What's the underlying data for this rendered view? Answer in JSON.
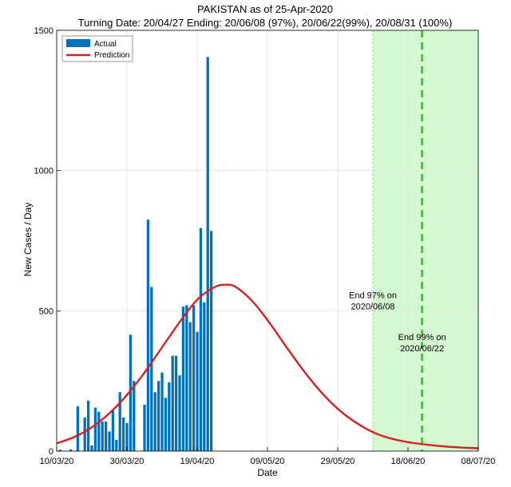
{
  "chart_data": {
    "type": "bar",
    "title": "PAKISTAN as of 25-Apr-2020",
    "subtitle": "Turning Date: 20/04/27  Ending: 20/06/08 (97%), 20/06/22(99%), 20/08/31 (100%)",
    "xlabel": "Date",
    "ylabel": "New Cases / Day",
    "ylim": [
      0,
      1500
    ],
    "xlim": [
      "2020-03-10",
      "2020-07-08"
    ],
    "x_tick_labels": [
      "10/03/20",
      "30/03/20",
      "19/04/20",
      "09/05/20",
      "29/05/20",
      "18/06/20",
      "08/07/20"
    ],
    "x_tick_dates": [
      "2020-03-10",
      "2020-03-30",
      "2020-04-19",
      "2020-05-09",
      "2020-05-29",
      "2020-06-18",
      "2020-07-08"
    ],
    "y_ticks": [
      0,
      500,
      1000,
      1500
    ],
    "grid": true,
    "legend_position": "top-left",
    "series": [
      {
        "name": "Actual",
        "kind": "bar",
        "color": "#0072BD",
        "dates": [
          "2020-03-11",
          "2020-03-12",
          "2020-03-13",
          "2020-03-14",
          "2020-03-15",
          "2020-03-16",
          "2020-03-17",
          "2020-03-18",
          "2020-03-19",
          "2020-03-20",
          "2020-03-21",
          "2020-03-22",
          "2020-03-23",
          "2020-03-24",
          "2020-03-25",
          "2020-03-26",
          "2020-03-27",
          "2020-03-28",
          "2020-03-29",
          "2020-03-30",
          "2020-03-31",
          "2020-04-01",
          "2020-04-02",
          "2020-04-03",
          "2020-04-04",
          "2020-04-05",
          "2020-04-06",
          "2020-04-07",
          "2020-04-08",
          "2020-04-09",
          "2020-04-10",
          "2020-04-11",
          "2020-04-12",
          "2020-04-13",
          "2020-04-14",
          "2020-04-15",
          "2020-04-16",
          "2020-04-17",
          "2020-04-18",
          "2020-04-19",
          "2020-04-20",
          "2020-04-21",
          "2020-04-22",
          "2020-04-23",
          "2020-04-24",
          "2020-04-25"
        ],
        "values": [
          5,
          0,
          0,
          6,
          0,
          160,
          0,
          120,
          180,
          20,
          155,
          140,
          105,
          105,
          70,
          145,
          40,
          210,
          120,
          100,
          415,
          250,
          0,
          0,
          165,
          825,
          585,
          210,
          250,
          280,
          190,
          245,
          340,
          340,
          270,
          515,
          520,
          460,
          520,
          425,
          795,
          530,
          1405,
          785,
          0,
          0
        ]
      },
      {
        "name": "Prediction",
        "kind": "line",
        "color": "#D62020",
        "dates": [
          "2020-03-10",
          "2020-03-15",
          "2020-03-20",
          "2020-03-25",
          "2020-03-30",
          "2020-04-04",
          "2020-04-09",
          "2020-04-14",
          "2020-04-19",
          "2020-04-24",
          "2020-04-27",
          "2020-04-30",
          "2020-05-05",
          "2020-05-10",
          "2020-05-15",
          "2020-05-20",
          "2020-05-25",
          "2020-05-30",
          "2020-06-04",
          "2020-06-09",
          "2020-06-14",
          "2020-06-19",
          "2020-06-24",
          "2020-06-29",
          "2020-07-04",
          "2020-07-08"
        ],
        "values": [
          28,
          50,
          85,
          135,
          200,
          280,
          370,
          460,
          540,
          585,
          593,
          585,
          530,
          450,
          360,
          275,
          200,
          140,
          95,
          62,
          42,
          30,
          22,
          16,
          12,
          10
        ]
      }
    ],
    "shaded_region": {
      "start": "2020-06-08",
      "end": "2020-07-08",
      "color": "#D4F8CF"
    },
    "vertical_lines": [
      {
        "date": "2020-06-08",
        "style": "dotted",
        "color": "#9ACD9A"
      },
      {
        "date": "2020-06-22",
        "style": "dashed",
        "color": "#22C022"
      }
    ],
    "annotations": [
      {
        "lines": [
          "End 97% on",
          "2020/06/08"
        ],
        "date": "2020-06-08",
        "y": 545
      },
      {
        "lines": [
          "End 99% on",
          "2020/06/22"
        ],
        "date": "2020-06-22",
        "y": 395
      }
    ]
  }
}
